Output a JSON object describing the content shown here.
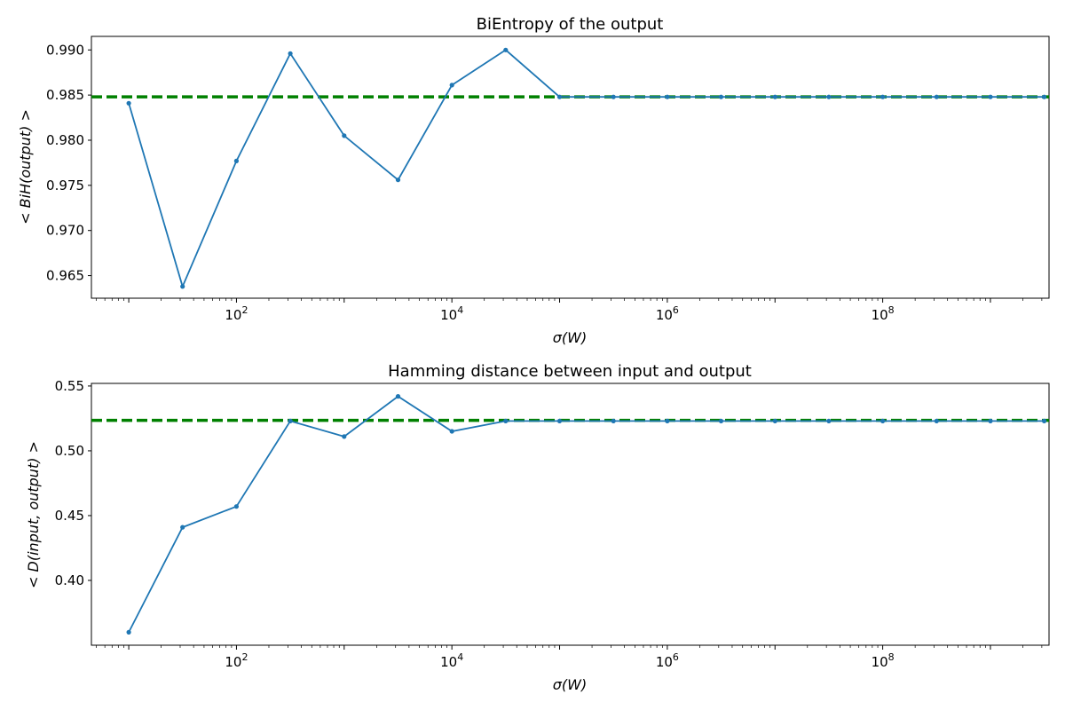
{
  "chart_data": [
    {
      "type": "line",
      "title": "BiEntropy of the output",
      "xlabel": "σ(W)",
      "ylabel": "< BiH(output) >",
      "xscale": "log",
      "xlim": [
        4.5,
        3500000000.0
      ],
      "ylim": [
        0.9625,
        0.9915
      ],
      "x_ticks": [
        {
          "value": 100,
          "base": "10",
          "exp": "2"
        },
        {
          "value": 10000,
          "base": "10",
          "exp": "4"
        },
        {
          "value": 1000000,
          "base": "10",
          "exp": "6"
        },
        {
          "value": 100000000,
          "base": "10",
          "exp": "8"
        }
      ],
      "y_ticks": [
        {
          "value": 0.965,
          "label": "0.965"
        },
        {
          "value": 0.97,
          "label": "0.970"
        },
        {
          "value": 0.975,
          "label": "0.975"
        },
        {
          "value": 0.98,
          "label": "0.980"
        },
        {
          "value": 0.985,
          "label": "0.985"
        },
        {
          "value": 0.99,
          "label": "0.990"
        }
      ],
      "x": [
        10,
        31.6,
        100,
        316,
        1000,
        3160,
        10000,
        31600,
        100000,
        316000,
        1000000,
        3160000,
        10000000,
        31600000,
        100000000,
        316000000,
        1000000000,
        3160000000
      ],
      "series": [
        {
          "values": [
            0.9841,
            0.9638,
            0.9777,
            0.9896,
            0.9805,
            0.9756,
            0.9861,
            0.99,
            0.9848,
            0.9848,
            0.9848,
            0.9848,
            0.9848,
            0.9848,
            0.9848,
            0.9848,
            0.9848,
            0.9848
          ],
          "color": "#1f77b4"
        }
      ],
      "reference_line": {
        "y": 0.9848,
        "style": "dashed",
        "color": "#008000"
      },
      "grid": false
    },
    {
      "type": "line",
      "title": "Hamming distance between input and output",
      "xlabel": "σ(W)",
      "ylabel": "< D(input, output) >",
      "xscale": "log",
      "xlim": [
        4.5,
        3500000000.0
      ],
      "ylim": [
        0.35,
        0.552
      ],
      "x_ticks": [
        {
          "value": 100,
          "base": "10",
          "exp": "2"
        },
        {
          "value": 10000,
          "base": "10",
          "exp": "4"
        },
        {
          "value": 1000000,
          "base": "10",
          "exp": "6"
        },
        {
          "value": 100000000,
          "base": "10",
          "exp": "8"
        }
      ],
      "y_ticks": [
        {
          "value": 0.4,
          "label": "0.40"
        },
        {
          "value": 0.45,
          "label": "0.45"
        },
        {
          "value": 0.5,
          "label": "0.50"
        },
        {
          "value": 0.55,
          "label": "0.55"
        }
      ],
      "x": [
        10,
        31.6,
        100,
        316,
        1000,
        3160,
        10000,
        31600,
        100000,
        316000,
        1000000,
        3160000,
        10000000,
        31600000,
        100000000,
        316000000,
        1000000000,
        3160000000
      ],
      "series": [
        {
          "values": [
            0.36,
            0.441,
            0.457,
            0.523,
            0.511,
            0.542,
            0.515,
            0.523,
            0.523,
            0.523,
            0.523,
            0.523,
            0.523,
            0.523,
            0.523,
            0.523,
            0.523,
            0.523
          ],
          "color": "#1f77b4"
        }
      ],
      "reference_line": {
        "y": 0.5235,
        "style": "dashed",
        "color": "#008000"
      },
      "grid": false
    }
  ]
}
